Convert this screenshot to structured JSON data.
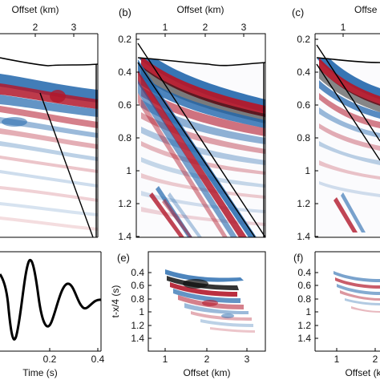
{
  "figure": {
    "panels": [
      {
        "id": "a",
        "letter": "",
        "top_xlabel": "Offset (km)",
        "xticks": [
          "2",
          "3"
        ]
      },
      {
        "id": "b",
        "letter": "(b)",
        "top_xlabel": "Offset (km)",
        "xticks": [
          "1",
          "2",
          "3"
        ],
        "yticks": [
          "0.2",
          "0.4",
          "0.6",
          "0.8",
          "1",
          "1.2",
          "1.4"
        ]
      },
      {
        "id": "c",
        "letter": "(c)",
        "top_xlabel": "Offse",
        "xticks": [
          "1"
        ],
        "yticks": [
          "0.2",
          "0.4",
          "0.6",
          "0.8",
          "1",
          "1.2",
          "1.4"
        ]
      },
      {
        "id": "d",
        "letter": "",
        "xlabel": "Time (s)",
        "xticks": [
          "0.2",
          "0.4"
        ]
      },
      {
        "id": "e",
        "letter": "(e)",
        "xlabel": "Offset (km)",
        "ylabel": "t-x/4 (s)",
        "xticks": [
          "1",
          "2",
          "3"
        ],
        "yticks": [
          "0.4",
          "0.6",
          "0.8",
          "1",
          "1.2",
          "1.4"
        ]
      },
      {
        "id": "f",
        "letter": "(f)",
        "xlabel": "Offset (km)",
        "xticks": [
          "1",
          "2"
        ],
        "yticks": [
          "0.4",
          "0.6",
          "0.8",
          "1",
          "1.2",
          "1.4"
        ]
      }
    ]
  },
  "colors": {
    "positive": "#b2182b",
    "negative": "#2166ac",
    "axis": "#000000",
    "topography": "#000000"
  },
  "chart_data": [
    {
      "type": "other",
      "panel": "b",
      "description_values": {
        "time_axis_s": [
          0.15,
          1.4
        ],
        "offset_axis_km": [
          0.15,
          3.5
        ]
      }
    },
    {
      "type": "line",
      "panel": "d",
      "x": [
        0.0,
        0.05,
        0.1,
        0.15,
        0.2,
        0.25,
        0.3,
        0.35,
        0.4
      ],
      "xlim": [
        0.0,
        0.4
      ]
    }
  ]
}
